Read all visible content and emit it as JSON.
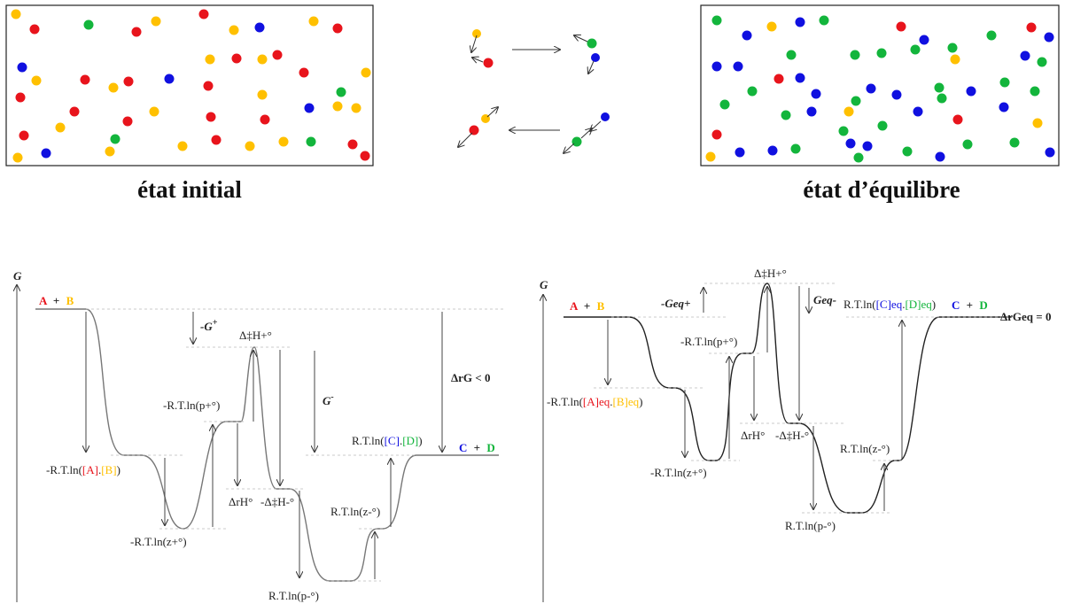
{
  "captions": {
    "initial": "état initial",
    "equilibrium": "état d’équilibre"
  },
  "colors": {
    "red": "#e8141c",
    "yellow": "#ffc000",
    "green": "#13b53c",
    "blue": "#1010e0"
  },
  "left": {
    "axis": "G",
    "reactant_a": "A",
    "reactant_b": "B",
    "plus": "+",
    "product_c": "C",
    "product_d": "D",
    "g_plus": "-G",
    "g_plus_sup": "+",
    "g_minus": "G",
    "g_minus_sup": "-",
    "delta_h_top": "Δ‡H+°",
    "deltaG": "ΔrG < 0",
    "l_conc_pre": "-R.T.ln(",
    "l_conc_a": "[A]",
    "l_conc_dot": ".",
    "l_conc_b": "[B]",
    "l_conc_post": ")",
    "l_z_plus": "-R.T.ln(z+°)",
    "l_p_plus": "-R.T.ln(p+°)",
    "l_dh": "ΔrH°",
    "l_dh_minus": "-Δ‡H-°",
    "l_z_minus": "R.T.ln(z-°)",
    "l_p_minus": "R.T.ln(p-°)",
    "r_conc_pre": "R.T.ln(",
    "r_conc_c": "[C]",
    "r_conc_dot": ".",
    "r_conc_d": "[D]",
    "r_conc_post": ")"
  },
  "right": {
    "axis": "G",
    "reactant_a": "A",
    "reactant_b": "B",
    "plus": "+",
    "product_c": "C",
    "product_d": "D",
    "g_eq_plus": "-Geq+",
    "g_eq_minus": "Geq-",
    "delta_h_top": "Δ‡H+°",
    "deltaG": "ΔrGeq = 0",
    "l_conc_pre": "-R.T.ln(",
    "l_conc_a": "[A]eq",
    "l_conc_dot": ".",
    "l_conc_b": "[B]eq",
    "l_conc_post": ")",
    "l_z_plus": "-R.T.ln(z+°)",
    "l_p_plus": "-R.T.ln(p+°)",
    "l_dh": "ΔrH°",
    "l_dh_minus": "-Δ‡H-°",
    "l_z_minus": "R.T.ln(z-°)",
    "l_p_minus": "R.T.ln(p-°)",
    "r_conc_pre": "R.T.ln(",
    "r_conc_c": "[C]eq",
    "r_conc_dot": ".",
    "r_conc_d": "[D]eq",
    "r_conc_post": ")"
  }
}
